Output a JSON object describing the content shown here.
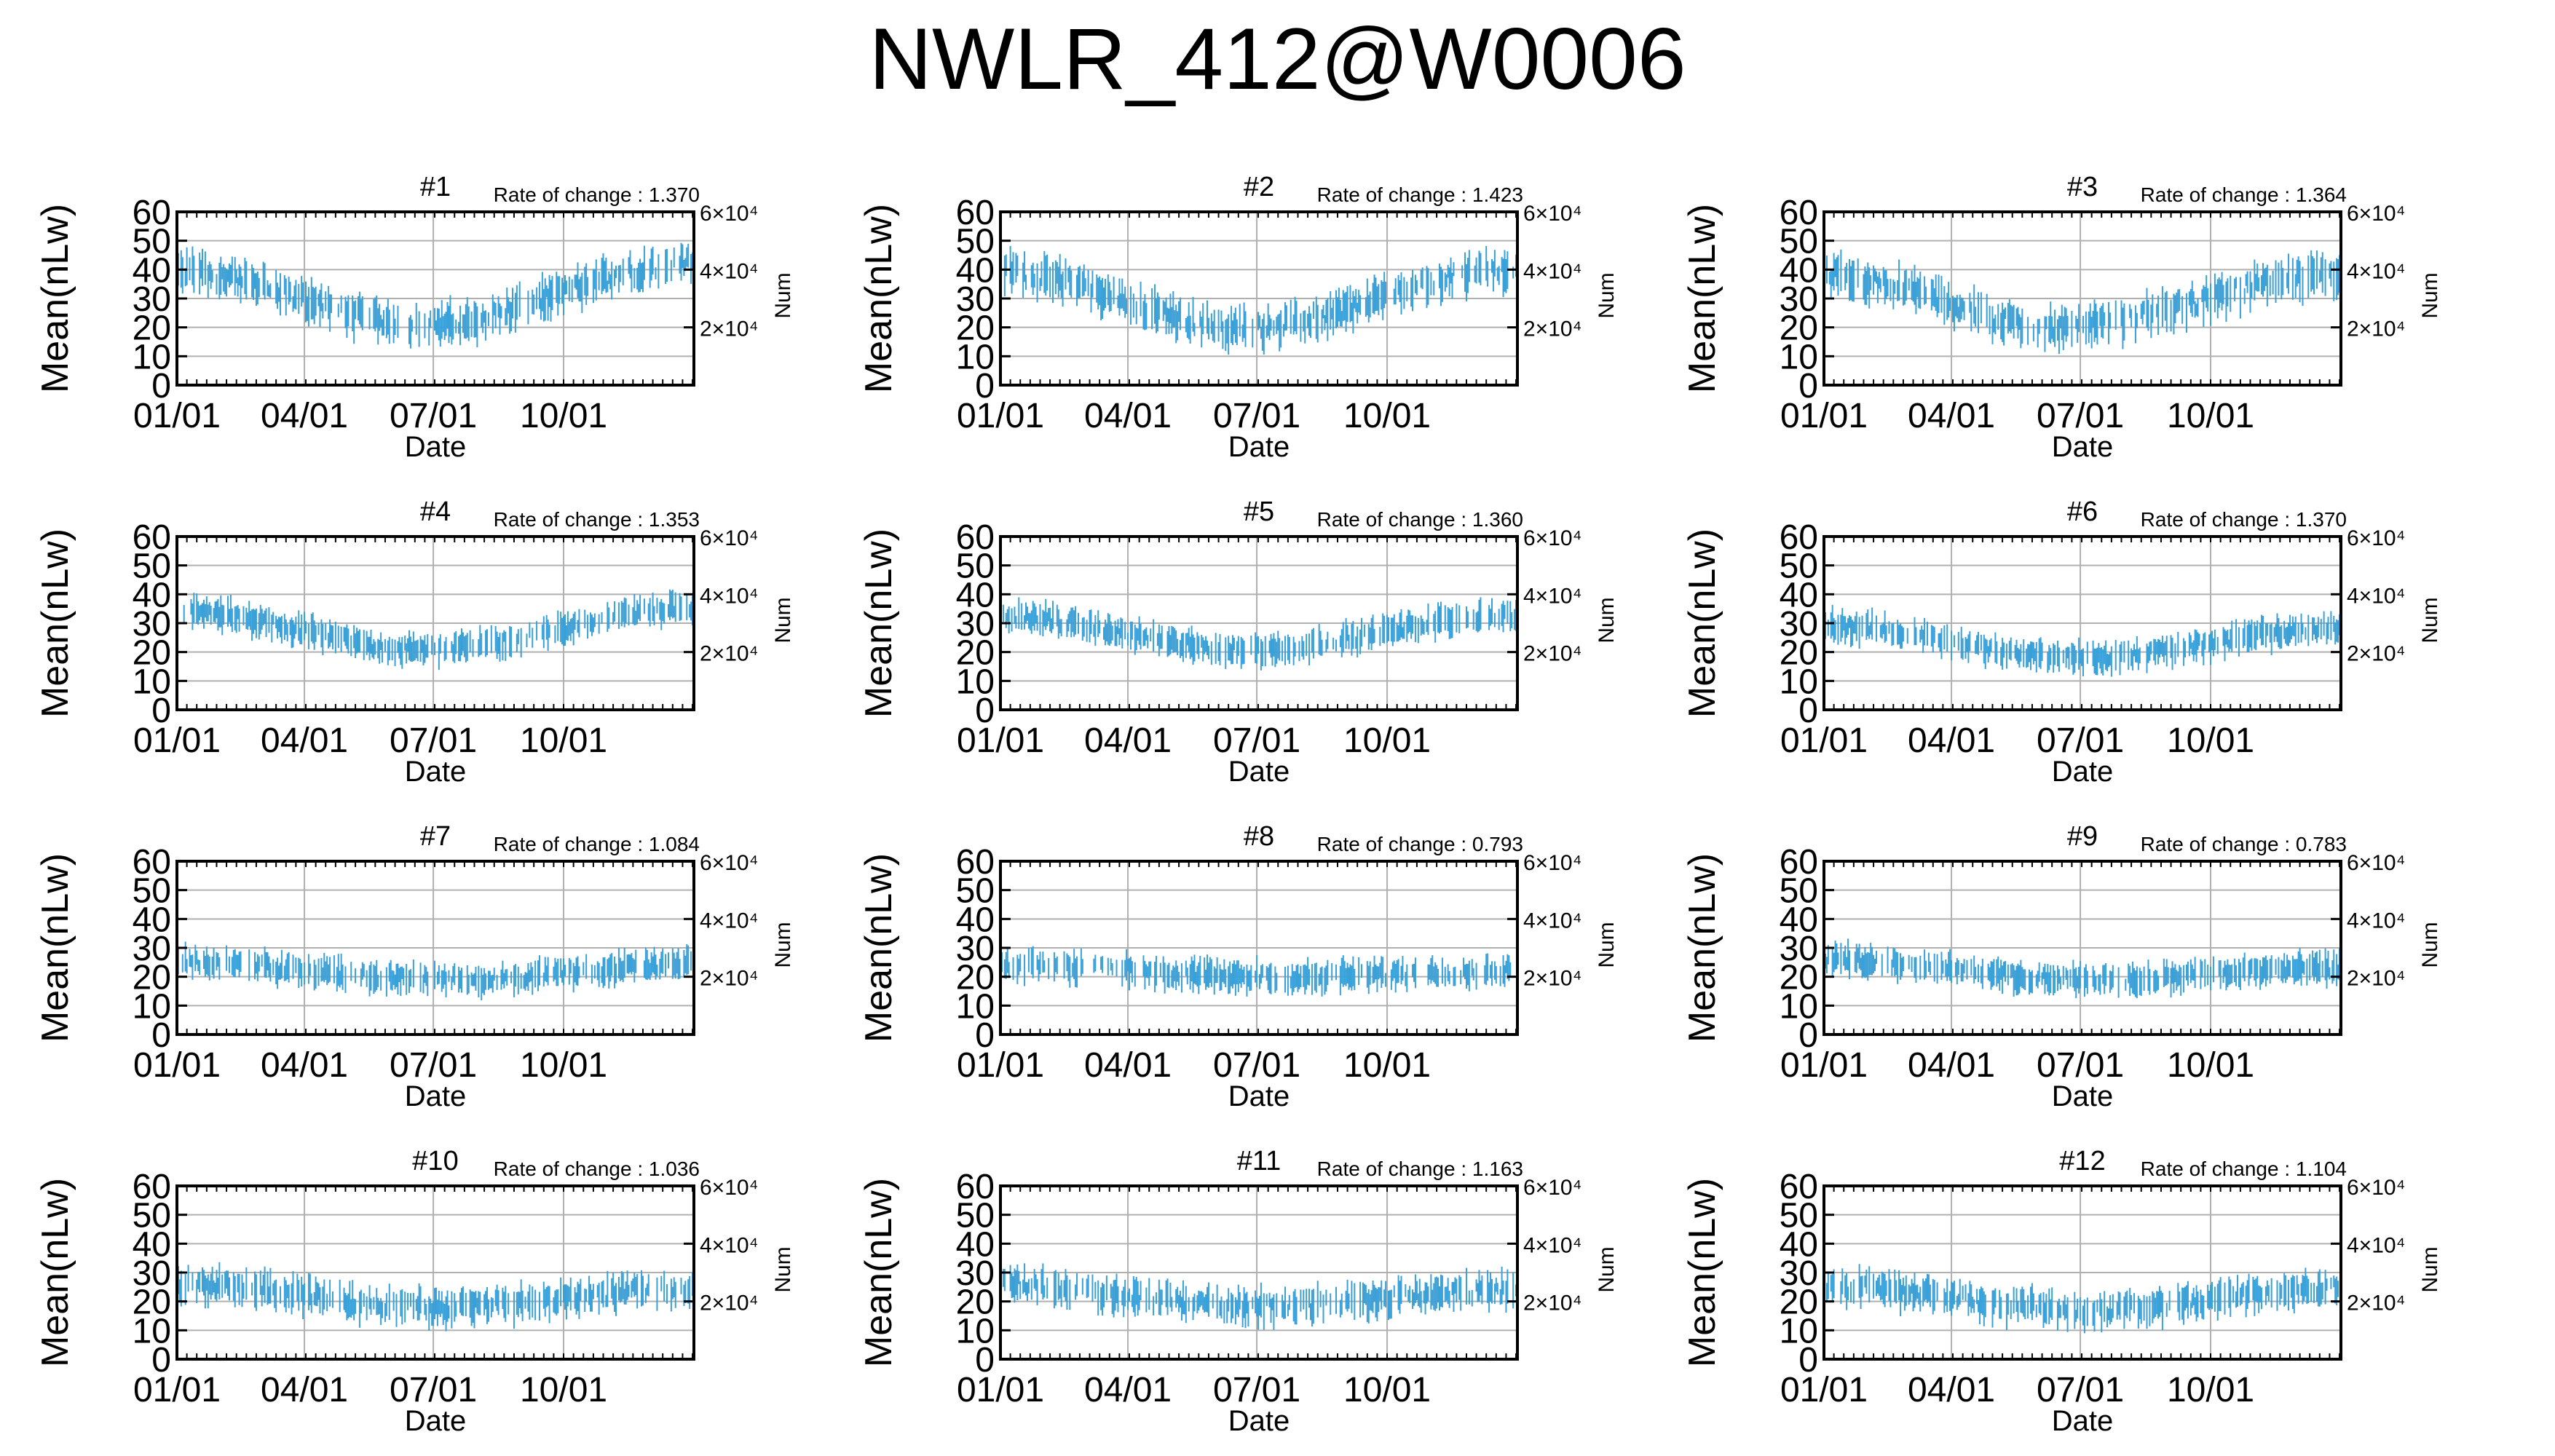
{
  "page": {
    "title": "NWLR_412@W0006"
  },
  "common": {
    "ylabel": "Mean(nLw)",
    "xlabel": "Date",
    "y2label": "Num",
    "rate_prefix": "Rate of change : ",
    "x_ticks": [
      "01/01",
      "04/01",
      "07/01",
      "10/01"
    ],
    "y_ticks": [
      "0",
      "10",
      "20",
      "30",
      "40",
      "50",
      "60"
    ],
    "y2_ticks": [
      "2×10⁴",
      "4×10⁴",
      "6×10⁴"
    ]
  },
  "colors": {
    "series": "#3aa0d8",
    "grid": "#b0b0b0",
    "axis": "#000000"
  },
  "chart_data": [
    {
      "type": "scatter",
      "title": "#1",
      "rate": "1.370",
      "ylim": [
        0,
        60
      ],
      "y2lim": [
        0,
        60000
      ],
      "profile": {
        "jan": 39,
        "summer_min": 21,
        "dec": 42,
        "min_day": 175,
        "spread": 6
      }
    },
    {
      "type": "scatter",
      "title": "#2",
      "rate": "1.423",
      "ylim": [
        0,
        60
      ],
      "y2lim": [
        0,
        60000
      ],
      "profile": {
        "jan": 39,
        "summer_min": 20,
        "dec": 40,
        "min_day": 170,
        "spread": 6
      }
    },
    {
      "type": "scatter",
      "title": "#3",
      "rate": "1.364",
      "ylim": [
        0,
        60
      ],
      "y2lim": [
        0,
        60000
      ],
      "profile": {
        "jan": 38,
        "summer_min": 20,
        "dec": 38,
        "min_day": 165,
        "spread": 6
      }
    },
    {
      "type": "scatter",
      "title": "#4",
      "rate": "1.353",
      "ylim": [
        0,
        60
      ],
      "y2lim": [
        0,
        60000
      ],
      "profile": {
        "jan": 34,
        "summer_min": 21,
        "dec": 35,
        "min_day": 175,
        "spread": 4
      }
    },
    {
      "type": "scatter",
      "title": "#5",
      "rate": "1.360",
      "ylim": [
        0,
        60
      ],
      "y2lim": [
        0,
        60000
      ],
      "profile": {
        "jan": 32,
        "summer_min": 21,
        "dec": 33,
        "min_day": 175,
        "spread": 4
      }
    },
    {
      "type": "scatter",
      "title": "#6",
      "rate": "1.370",
      "ylim": [
        0,
        60
      ],
      "y2lim": [
        0,
        60000
      ],
      "profile": {
        "jan": 29,
        "summer_min": 18,
        "dec": 28,
        "min_day": 180,
        "spread": 4
      }
    },
    {
      "type": "scatter",
      "title": "#7",
      "rate": "1.084",
      "ylim": [
        0,
        60
      ],
      "y2lim": [
        0,
        60000
      ],
      "profile": {
        "jan": 25,
        "summer_min": 19,
        "dec": 24,
        "min_day": 190,
        "spread": 4
      }
    },
    {
      "type": "scatter",
      "title": "#8",
      "rate": "0.793",
      "ylim": [
        0,
        60
      ],
      "y2lim": [
        0,
        60000
      ],
      "profile": {
        "jan": 24,
        "summer_min": 20,
        "dec": 22,
        "min_day": 200,
        "spread": 4
      }
    },
    {
      "type": "scatter",
      "title": "#9",
      "rate": "0.783",
      "ylim": [
        0,
        60
      ],
      "y2lim": [
        0,
        60000
      ],
      "profile": {
        "jan": 26,
        "summer_min": 19,
        "dec": 23,
        "min_day": 190,
        "spread": 4
      }
    },
    {
      "type": "scatter",
      "title": "#10",
      "rate": "1.036",
      "ylim": [
        0,
        60
      ],
      "y2lim": [
        0,
        60000
      ],
      "profile": {
        "jan": 26,
        "summer_min": 18,
        "dec": 24,
        "min_day": 180,
        "spread": 5
      }
    },
    {
      "type": "scatter",
      "title": "#11",
      "rate": "1.163",
      "ylim": [
        0,
        60
      ],
      "y2lim": [
        0,
        60000
      ],
      "profile": {
        "jan": 26,
        "summer_min": 18,
        "dec": 24,
        "min_day": 180,
        "spread": 5
      }
    },
    {
      "type": "scatter",
      "title": "#12",
      "rate": "1.104",
      "ylim": [
        0,
        60
      ],
      "y2lim": [
        0,
        60000
      ],
      "profile": {
        "jan": 25,
        "summer_min": 17,
        "dec": 25,
        "min_day": 190,
        "spread": 5
      }
    }
  ]
}
